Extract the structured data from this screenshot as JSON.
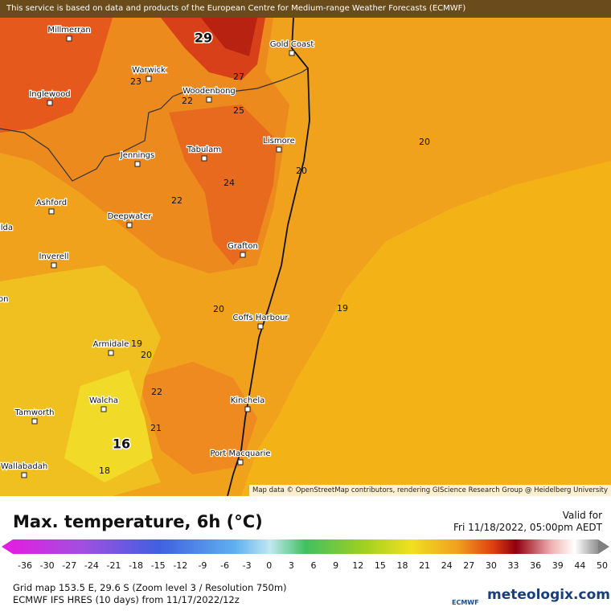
{
  "banner": "This service is based on data and products of the European Centre for Medium-range Weather Forecasts (ECMWF)",
  "attribution": "Map data © OpenStreetMap contributors, rendering GIScience Research Group @ Heidelberg University",
  "places": [
    "Millmerran",
    "Gold Coast",
    "Warwick",
    "Inglewood",
    "Woodenbong",
    "Lismore",
    "Tabulam",
    "Jennings",
    "Ashford",
    "Deepwater",
    "Grafton",
    "Inverell",
    "Coffs Harbour",
    "Armidale",
    "Kinchela",
    "Walcha",
    "Tamworth",
    "Port Macquarie",
    "Wallabadah",
    "ilda",
    "on"
  ],
  "contour_labels": [
    29,
    27,
    23,
    22,
    25,
    20,
    20,
    24,
    22,
    19,
    20,
    19,
    20,
    22,
    21,
    16,
    18
  ],
  "legend": {
    "title": "Max. temperature, 6h (°C)",
    "valid_label": "Valid for",
    "valid_time": "Fri 11/18/2022, 05:00pm AEDT",
    "scale": [
      -36,
      -30,
      -27,
      -24,
      -21,
      -18,
      -15,
      -12,
      -9,
      -6,
      -3,
      0,
      3,
      6,
      9,
      12,
      15,
      18,
      21,
      24,
      27,
      30,
      33,
      36,
      39,
      44,
      50
    ]
  },
  "footer": {
    "grid": "Grid map 153.5 E, 29.6 S (Zoom level 3 / Resolution 750m)",
    "model": "ECMWF IFS HRES (10 days) from 11/17/2022/12z",
    "ecmwf_logo": "ECMWF",
    "site": "meteologix.com"
  }
}
